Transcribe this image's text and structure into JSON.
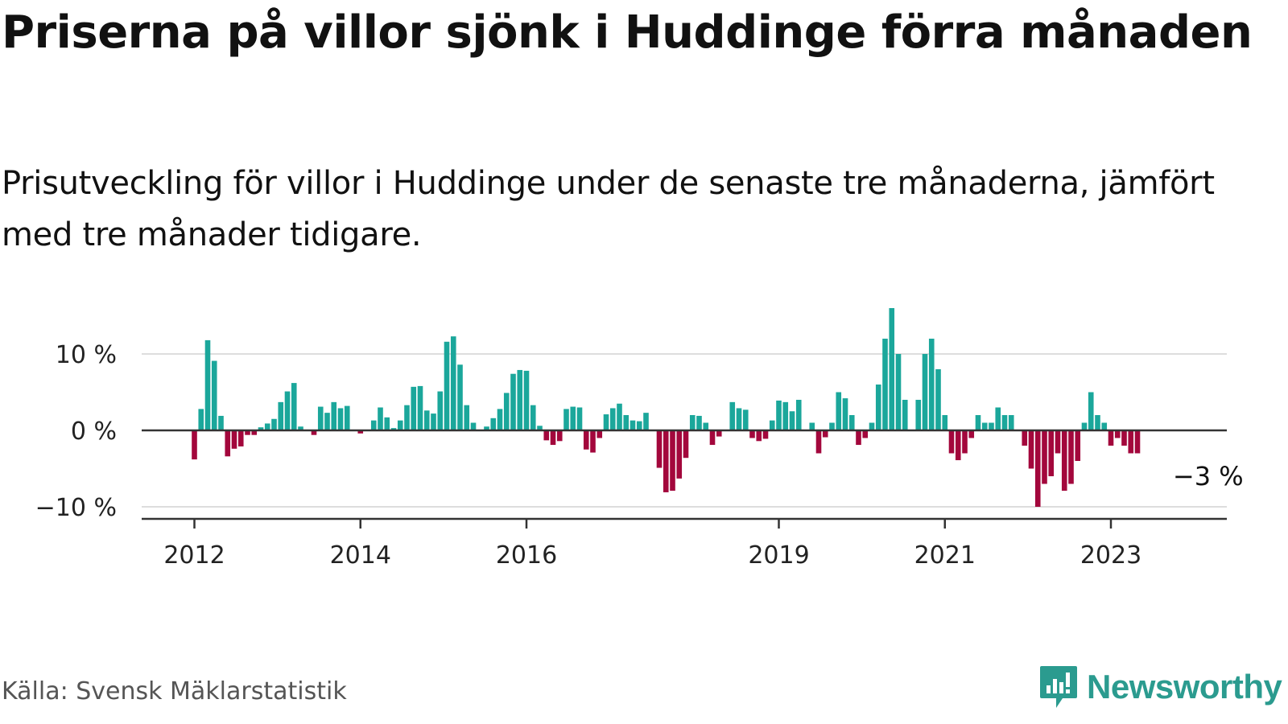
{
  "title": "Priserna på villor sjönk i Huddinge förra månaden",
  "subtitle": "Prisutveckling för villor i Huddinge under de senaste tre månaderna, jämfört med tre månader tidigare.",
  "source": "Källa: Svensk Mäklarstatistik",
  "brand": "Newsworthy",
  "colors": {
    "positive": "#1ba79b",
    "negative": "#a3073c",
    "brand": "#2b9b8f"
  },
  "chart_data": {
    "type": "bar",
    "title": "Priserna på villor sjönk i Huddinge förra månaden",
    "ylabel": "",
    "xlabel": "",
    "ylim": [
      -11,
      16
    ],
    "y_ticks": [
      10,
      0,
      -10
    ],
    "y_tick_labels": [
      "10 %",
      "0 %",
      "−10 %"
    ],
    "x_ticks": [
      {
        "label": "2012",
        "index": 0
      },
      {
        "label": "2014",
        "index": 25
      },
      {
        "label": "2016",
        "index": 50
      },
      {
        "label": "2019",
        "index": 88
      },
      {
        "label": "2021",
        "index": 113
      },
      {
        "label": "2023",
        "index": 138
      }
    ],
    "annotation": {
      "text": "−3 %",
      "index": 149
    },
    "values": [
      -3.8,
      2.8,
      11.8,
      9.1,
      1.9,
      -3.4,
      -2.4,
      -2.1,
      -0.6,
      -0.6,
      0.4,
      0.9,
      1.5,
      3.7,
      5.1,
      6.2,
      0.5,
      0,
      -0.6,
      3.1,
      2.3,
      3.7,
      2.9,
      3.2,
      0,
      -0.4,
      0.1,
      1.3,
      3.0,
      1.7,
      0.3,
      1.3,
      3.3,
      5.7,
      5.8,
      2.6,
      2.2,
      5.1,
      11.6,
      12.3,
      8.6,
      3.3,
      1.0,
      0,
      0.5,
      1.6,
      2.8,
      4.9,
      7.4,
      7.9,
      7.8,
      3.3,
      0.6,
      -1.3,
      -1.9,
      -1.4,
      2.8,
      3.1,
      3.0,
      -2.5,
      -2.9,
      -1.0,
      2.1,
      2.9,
      3.5,
      2.0,
      1.3,
      1.2,
      2.3,
      0,
      -4.9,
      -8.1,
      -7.9,
      -6.3,
      -3.6,
      2.0,
      1.9,
      1.0,
      -1.9,
      -0.8,
      0,
      3.7,
      2.9,
      2.7,
      -1.0,
      -1.4,
      -1.1,
      1.3,
      3.9,
      3.7,
      2.5,
      4.0,
      0,
      1.0,
      -3.0,
      -0.9,
      1.0,
      5.0,
      4.2,
      2.0,
      -1.9,
      -1.0,
      1.0,
      6.0,
      12.0,
      16.0,
      10.0,
      4.0,
      0,
      4.0,
      10.0,
      12.0,
      8.0,
      2.0,
      -3.0,
      -3.9,
      -3.0,
      -1.0,
      2.0,
      1.0,
      1.0,
      3.0,
      2.0,
      2.0,
      0,
      -2.0,
      -5.0,
      -10.0,
      -7.0,
      -6.0,
      -3.0,
      -7.9,
      -7.0,
      -4.0,
      1.0,
      5.0,
      2.0,
      1.0,
      -2.0,
      -1.0,
      -2.0,
      -3.0,
      -3.0
    ]
  }
}
